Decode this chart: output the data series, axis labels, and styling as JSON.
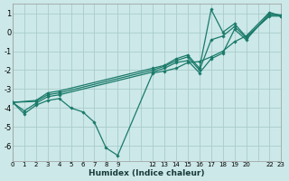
{
  "xlabel": "Humidex (Indice chaleur)",
  "bg_color": "#cce8e8",
  "grid_color": "#aacccc",
  "line_color": "#1a7a6a",
  "marker_color": "#1a7a6a",
  "lines": [
    {
      "x": [
        0,
        1,
        2,
        3,
        4,
        5,
        6,
        7,
        8,
        9,
        12,
        13,
        14,
        15,
        16,
        17,
        18,
        19,
        20,
        22,
        23
      ],
      "y": [
        -3.7,
        -4.3,
        -3.85,
        -3.6,
        -3.5,
        -4.0,
        -4.2,
        -4.75,
        -6.1,
        -6.5,
        -2.15,
        -2.05,
        -1.9,
        -1.6,
        -1.55,
        -1.3,
        -1.0,
        -0.5,
        -0.2,
        1.05,
        0.85
      ]
    },
    {
      "x": [
        0,
        1,
        2,
        3,
        4,
        12,
        13,
        14,
        15,
        16,
        17,
        18,
        19,
        20,
        22,
        23
      ],
      "y": [
        -3.7,
        -4.15,
        -3.75,
        -3.4,
        -3.3,
        -2.1,
        -1.9,
        -1.6,
        -1.5,
        -2.15,
        -1.4,
        -1.1,
        0.15,
        -0.4,
        1.0,
        0.9
      ]
    },
    {
      "x": [
        0,
        2,
        3,
        4,
        12,
        13,
        14,
        15,
        16,
        17,
        18,
        19,
        20,
        22,
        23
      ],
      "y": [
        -3.7,
        -3.65,
        -3.3,
        -3.2,
        -2.0,
        -1.8,
        -1.5,
        -1.3,
        -2.0,
        -0.4,
        -0.2,
        0.3,
        -0.3,
        0.9,
        0.9
      ]
    },
    {
      "x": [
        0,
        2,
        3,
        4,
        12,
        13,
        14,
        15,
        16,
        17,
        18,
        19,
        20,
        22,
        23
      ],
      "y": [
        -3.7,
        -3.6,
        -3.2,
        -3.1,
        -1.9,
        -1.75,
        -1.4,
        -1.2,
        -1.9,
        1.2,
        0.0,
        0.45,
        -0.25,
        0.85,
        0.85
      ]
    }
  ],
  "xlim": [
    0,
    23
  ],
  "ylim": [
    -6.8,
    1.5
  ],
  "xticks": [
    0,
    1,
    2,
    3,
    4,
    5,
    6,
    7,
    8,
    9,
    12,
    13,
    14,
    15,
    16,
    17,
    18,
    19,
    20,
    22,
    23
  ],
  "xtick_labels": [
    "0",
    "1",
    "2",
    "3",
    "4",
    "5",
    "6",
    "7",
    "8",
    "9",
    "12",
    "13",
    "14",
    "15",
    "16",
    "17",
    "18",
    "19",
    "20",
    "22",
    "23"
  ],
  "yticks": [
    1,
    0,
    -1,
    -2,
    -3,
    -4,
    -5,
    -6
  ]
}
